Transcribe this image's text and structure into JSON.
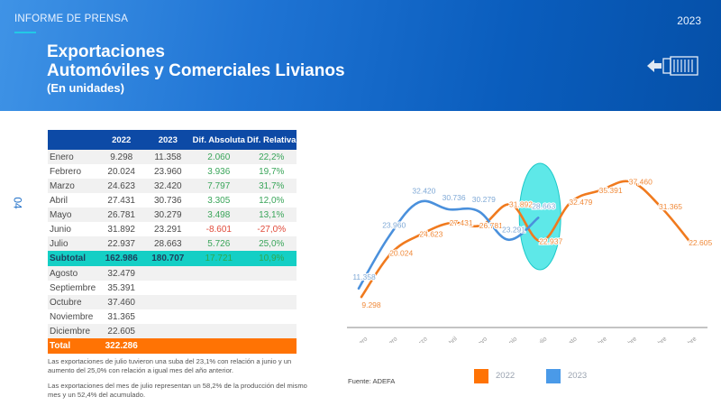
{
  "header": {
    "kicker": "INFORME DE PRENSA",
    "year": "2023",
    "title_line1": "Exportaciones",
    "title_line2": "Automóviles y Comerciales Livianos",
    "subtitle": "(En unidades)",
    "icon": "container-export-icon"
  },
  "page_number": "04",
  "table": {
    "columns": [
      "",
      "2022",
      "2023",
      "Dif. Absoluta",
      "Dif. Relativa"
    ],
    "rows": [
      {
        "month": "Enero",
        "y2022": "9.298",
        "y2023": "11.358",
        "abs": "2.060",
        "rel": "22,2%"
      },
      {
        "month": "Febrero",
        "y2022": "20.024",
        "y2023": "23.960",
        "abs": "3.936",
        "rel": "19,7%"
      },
      {
        "month": "Marzo",
        "y2022": "24.623",
        "y2023": "32.420",
        "abs": "7.797",
        "rel": "31,7%"
      },
      {
        "month": "Abril",
        "y2022": "27.431",
        "y2023": "30.736",
        "abs": "3.305",
        "rel": "12,0%"
      },
      {
        "month": "Mayo",
        "y2022": "26.781",
        "y2023": "30.279",
        "abs": "3.498",
        "rel": "13,1%"
      },
      {
        "month": "Junio",
        "y2022": "31.892",
        "y2023": "23.291",
        "abs": "-8.601",
        "rel": "-27,0%"
      },
      {
        "month": "Julio",
        "y2022": "22.937",
        "y2023": "28.663",
        "abs": "5.726",
        "rel": "25,0%"
      }
    ],
    "subtotal": {
      "label": "Subtotal",
      "y2022": "162.986",
      "y2023": "180.707",
      "abs": "17.721",
      "rel": "10,9%"
    },
    "rest_rows": [
      {
        "month": "Agosto",
        "y2022": "32.479"
      },
      {
        "month": "Septiembre",
        "y2022": "35.391"
      },
      {
        "month": "Octubre",
        "y2022": "37.460"
      },
      {
        "month": "Noviembre",
        "y2022": "31.365"
      },
      {
        "month": "Diciembre",
        "y2022": "22.605"
      }
    ],
    "total": {
      "label": "Total",
      "y2022": "322.286"
    }
  },
  "notes": [
    "Las exportaciones de julio tuvieron una suba del 23,1% con relación a junio y un aumento del 25,0% con relación a igual mes del año anterior.",
    "Las exportaciones del mes de julio representan un 58,2% de la producción del mismo mes y un 52,4% del acumulado."
  ],
  "source": "Fuente: ADEFA",
  "colors": {
    "series_2022": "#f07a1e",
    "series_2023": "#4a90dc",
    "header_blue": "#0d4aa6",
    "subtotal_teal": "#14cfc5",
    "total_orange": "#ff7304",
    "positive_green": "#3aa55a",
    "negative_red": "#e04a3a",
    "highlight_ellipse": "#5ee8e8"
  },
  "chart_data": {
    "type": "line",
    "title": "",
    "xlabel": "",
    "ylabel": "",
    "categories": [
      "Enero",
      "Febrero",
      "Marzo",
      "Abril",
      "Mayo",
      "Junio",
      "Julio",
      "Agosto",
      "Septiembre",
      "Octubre",
      "Noviembre",
      "Diciembre"
    ],
    "series": [
      {
        "name": "2022",
        "values": [
          9298,
          20024,
          24623,
          27431,
          26781,
          31892,
          22937,
          32479,
          35391,
          37460,
          31365,
          22605
        ],
        "labels": [
          "9.298",
          "20.024",
          "24.623",
          "27.431",
          "26.781",
          "31.892",
          "22.937",
          "32.479",
          "35.391",
          "37.460",
          "31.365",
          "22.605"
        ]
      },
      {
        "name": "2023",
        "values": [
          11358,
          23960,
          32420,
          30736,
          30279,
          23291,
          28663
        ],
        "labels": [
          "11.358",
          "23.960",
          "32.420",
          "30.736",
          "30.279",
          "23.291",
          "28.663"
        ]
      }
    ],
    "legend": [
      "2022",
      "2023"
    ],
    "legend_position": "bottom",
    "grid": false,
    "annotation": "Highlighted ellipse around Julio"
  }
}
